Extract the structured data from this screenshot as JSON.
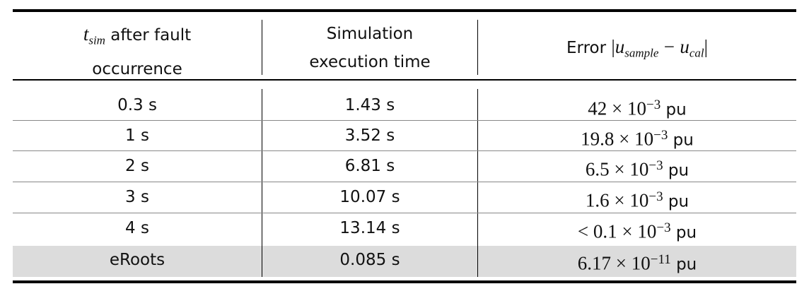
{
  "table": {
    "header": [
      {
        "var": "t",
        "sub": "sim",
        "line1": "after fault",
        "line2": "occurrence"
      },
      {
        "line1": "Simulation",
        "line2": "execution time"
      },
      {
        "label": "Error",
        "open": "|",
        "var1": "u",
        "sub1": "sample",
        "op": "−",
        "var2": "u",
        "sub2": "cal",
        "close": "|"
      }
    ],
    "rows": [
      [
        "0.3 s",
        "1.43 s",
        [
          "42 × 10",
          "−3",
          "pu"
        ]
      ],
      [
        "1 s",
        "3.52 s",
        [
          "19.8 × 10",
          "−3",
          "pu"
        ]
      ],
      [
        "2 s",
        "6.81 s",
        [
          "6.5 × 10",
          "−3",
          "pu"
        ]
      ],
      [
        "3 s",
        "10.07 s",
        [
          "1.6 × 10",
          "−3",
          "pu"
        ]
      ],
      [
        "4 s",
        "13.14 s",
        [
          "< 0.1 × 10",
          "−3",
          "pu"
        ]
      ],
      [
        "eRoots",
        "0.085 s",
        [
          "6.17 × 10",
          "−11",
          "pu"
        ]
      ]
    ]
  }
}
